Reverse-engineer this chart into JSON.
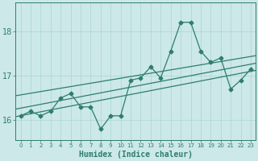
{
  "xlabel": "Humidex (Indice chaleur)",
  "ylabel": "",
  "x_values": [
    0,
    1,
    2,
    3,
    4,
    5,
    6,
    7,
    8,
    9,
    10,
    11,
    12,
    13,
    14,
    15,
    16,
    17,
    18,
    19,
    20,
    21,
    22,
    23
  ],
  "y_values": [
    16.1,
    16.2,
    16.1,
    16.2,
    16.5,
    16.6,
    16.3,
    16.3,
    15.8,
    16.1,
    16.1,
    16.9,
    16.95,
    17.2,
    16.95,
    17.55,
    18.2,
    18.2,
    17.55,
    17.3,
    17.4,
    16.7,
    16.9,
    17.15
  ],
  "line_color": "#2e7d6e",
  "bg_color": "#cce8e8",
  "grid_color": "#aad4d4",
  "tick_color": "#2e7d6e",
  "text_color": "#2e7d6e",
  "ylim": [
    15.55,
    18.65
  ],
  "yticks": [
    16,
    17,
    18
  ],
  "xlim": [
    -0.5,
    23.5
  ],
  "trend1_start": 16.08,
  "trend1_end": 17.12,
  "trend2_start": 16.55,
  "trend2_end": 17.45,
  "trend3_start": 16.25,
  "trend3_end": 17.28
}
